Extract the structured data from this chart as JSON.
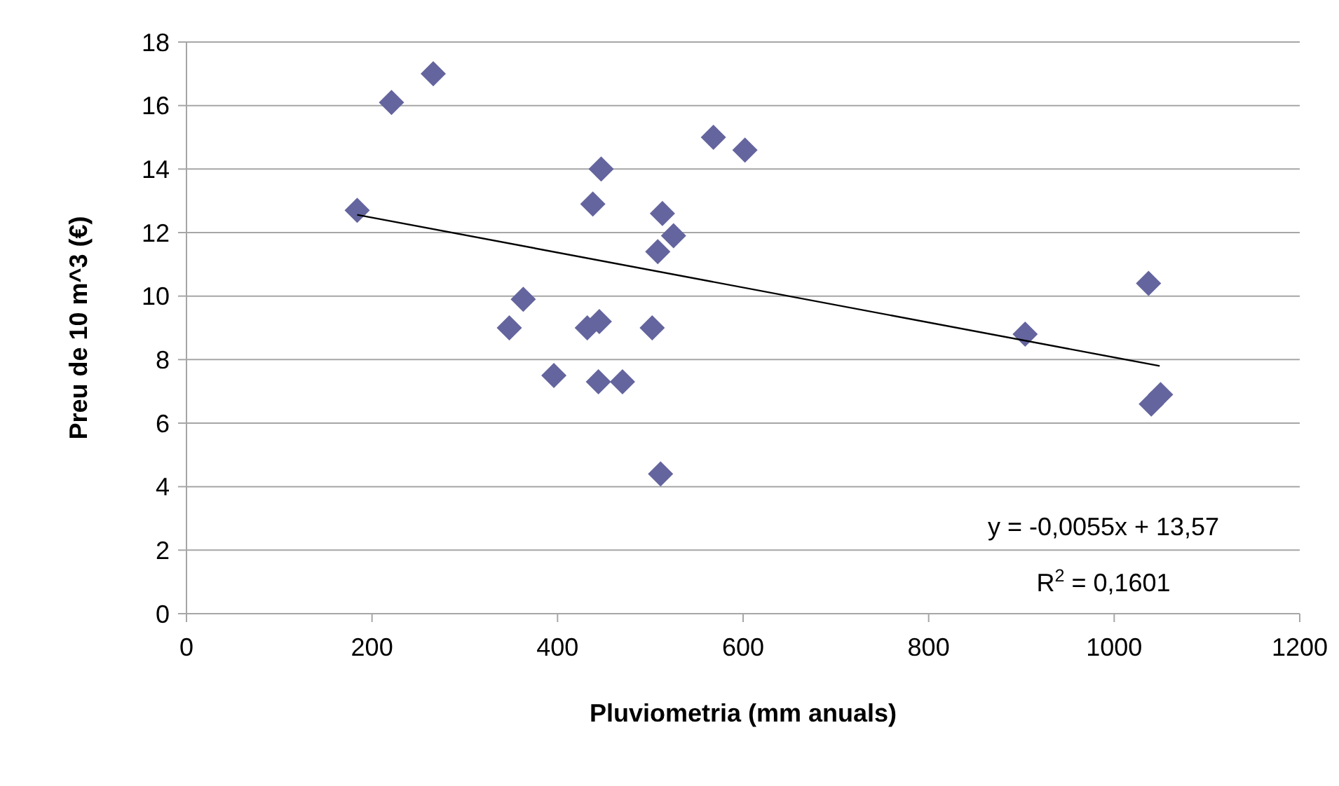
{
  "chart_data": {
    "type": "scatter",
    "xlabel": "Pluviometria (mm anuals)",
    "ylabel": "Preu de 10 m^3 (€)",
    "xlim": [
      0,
      1200
    ],
    "xticks": [
      0,
      200,
      400,
      600,
      800,
      1000,
      1200
    ],
    "ylim": [
      0,
      18
    ],
    "yticks": [
      0,
      2,
      4,
      6,
      8,
      10,
      12,
      14,
      16,
      18
    ],
    "grid": "y",
    "marker": "diamond",
    "series": [
      {
        "color": "#64649e",
        "x": [
          184,
          221,
          266,
          348,
          363,
          396,
          432,
          438,
          447,
          445,
          444,
          470,
          502,
          508,
          513,
          525,
          511,
          568,
          602,
          904,
          1037,
          1040,
          1050
        ],
        "values": [
          12.7,
          16.1,
          17.0,
          9.0,
          9.9,
          7.5,
          9.0,
          12.9,
          14.0,
          9.2,
          7.3,
          7.3,
          9.0,
          11.4,
          12.6,
          11.9,
          4.4,
          15.0,
          14.6,
          8.8,
          10.4,
          6.6,
          6.9
        ]
      },
      {
        "type": "line",
        "color": "#000000",
        "marker": "none",
        "line_style": "solid",
        "x": [
          184,
          1049
        ],
        "values": [
          12.56,
          7.8
        ]
      }
    ],
    "annotations": [
      "y = -0,0055x + 13,57",
      "R$^{2}$ = 0,1601"
    ]
  }
}
